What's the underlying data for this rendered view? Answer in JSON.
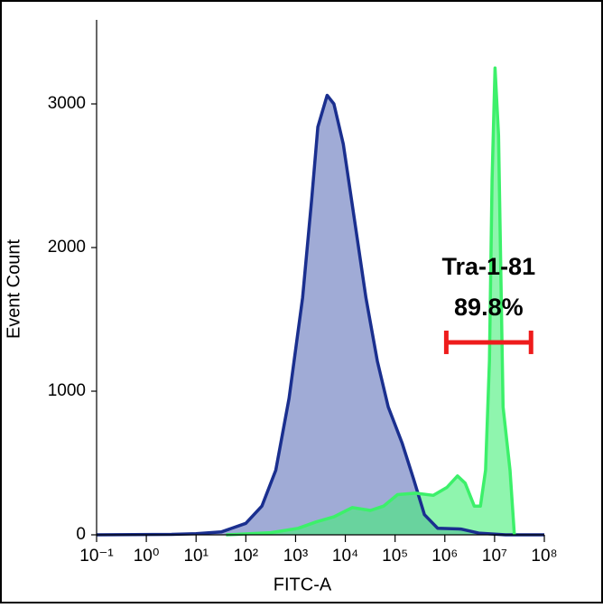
{
  "chart_data": {
    "type": "area",
    "x_label": "FITC-A",
    "y_label": "Event Count",
    "xscale": "log",
    "xlim": [
      0.1,
      100000000
    ],
    "ylim": [
      0,
      3585
    ],
    "xticks": [
      {
        "value": 0.1,
        "label": "10⁻¹"
      },
      {
        "value": 1,
        "label": "10⁰"
      },
      {
        "value": 10,
        "label": "10¹"
      },
      {
        "value": 100,
        "label": "10²"
      },
      {
        "value": 1000,
        "label": "10³"
      },
      {
        "value": 10000,
        "label": "10⁴"
      },
      {
        "value": 100000,
        "label": "10⁵"
      },
      {
        "value": 1000000,
        "label": "10⁶"
      },
      {
        "value": 10000000,
        "label": "10⁷"
      },
      {
        "value": 100000000,
        "label": "10⁸"
      }
    ],
    "yticks": [
      0,
      1000,
      2000,
      3000
    ],
    "series": [
      {
        "color": "#1a2f8f",
        "fill": "#8f9ccf",
        "x": [
          0.1,
          3.2,
          10,
          32,
          100,
          210,
          400,
          740,
          1380,
          2100,
          2800,
          4300,
          5900,
          9100,
          15000,
          26000,
          44000,
          73000,
          138000,
          235000,
          390000,
          720000,
          2100000,
          4800000,
          16600000,
          100000000
        ],
        "values": [
          0,
          3,
          8,
          20,
          80,
          200,
          450,
          950,
          1650,
          2330,
          2840,
          3060,
          3000,
          2720,
          2210,
          1650,
          1210,
          890,
          640,
          390,
          140,
          45,
          40,
          12,
          0,
          0
        ]
      },
      {
        "color": "#3cf06a",
        "fill": "#45ee78",
        "x": [
          40,
          320,
          1120,
          2600,
          5900,
          13800,
          32000,
          59000,
          112000,
          257000,
          590000,
          1100000,
          1800000,
          2560000,
          3900000,
          5200000,
          6600000,
          7900000,
          8900000,
          10200000,
          12000000,
          14800000,
          20400000,
          25000000
        ],
        "values": [
          0,
          15,
          45,
          90,
          125,
          190,
          170,
          200,
          280,
          290,
          275,
          330,
          410,
          360,
          200,
          200,
          450,
          1210,
          2470,
          3250,
          2780,
          890,
          450,
          0
        ]
      }
    ],
    "gate": {
      "label": "Tra-1-81",
      "percent": "89.8%",
      "range": [
        1070000,
        54000000
      ],
      "y": 1340,
      "color": "#ee1c1c"
    }
  }
}
